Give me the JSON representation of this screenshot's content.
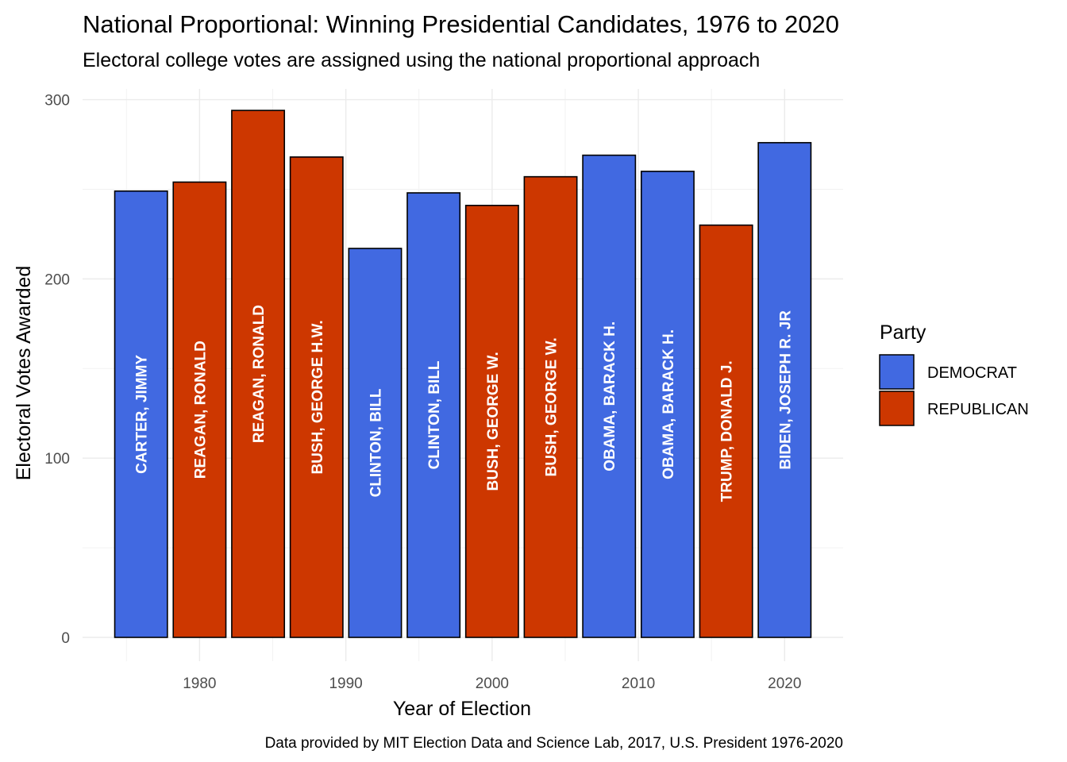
{
  "chart_data": {
    "type": "bar",
    "title": "National Proportional: Winning Presidential Candidates, 1976 to 2020",
    "subtitle": "Electoral college votes are assigned using the national proportional approach",
    "xlabel": "Year of Election",
    "ylabel": "Electoral Votes Awarded",
    "caption": "Data provided by MIT Election Data and Science Lab, 2017, U.S. President 1976-2020",
    "xlim": [
      1972,
      2024
    ],
    "ylim": [
      0,
      300
    ],
    "x_ticks": [
      "1980",
      "1990",
      "2000",
      "2010",
      "2020"
    ],
    "y_ticks": [
      "0",
      "100",
      "200",
      "300"
    ],
    "grid": true,
    "legend": {
      "title": "Party",
      "position": "right",
      "entries": [
        {
          "label": "DEMOCRAT",
          "color": "#4169e1"
        },
        {
          "label": "REPUBLICAN",
          "color": "#cd3700"
        }
      ]
    },
    "bars": [
      {
        "year": 1976,
        "value": 249,
        "candidate": "CARTER, JIMMY",
        "party": "DEMOCRAT"
      },
      {
        "year": 1980,
        "value": 254,
        "candidate": "REAGAN, RONALD",
        "party": "REPUBLICAN"
      },
      {
        "year": 1984,
        "value": 294,
        "candidate": "REAGAN, RONALD",
        "party": "REPUBLICAN"
      },
      {
        "year": 1988,
        "value": 268,
        "candidate": "BUSH, GEORGE H.W.",
        "party": "REPUBLICAN"
      },
      {
        "year": 1992,
        "value": 217,
        "candidate": "CLINTON, BILL",
        "party": "DEMOCRAT"
      },
      {
        "year": 1996,
        "value": 248,
        "candidate": "CLINTON, BILL",
        "party": "DEMOCRAT"
      },
      {
        "year": 2000,
        "value": 241,
        "candidate": "BUSH, GEORGE W.",
        "party": "REPUBLICAN"
      },
      {
        "year": 2004,
        "value": 257,
        "candidate": "BUSH, GEORGE W.",
        "party": "REPUBLICAN"
      },
      {
        "year": 2008,
        "value": 269,
        "candidate": "OBAMA, BARACK H.",
        "party": "DEMOCRAT"
      },
      {
        "year": 2012,
        "value": 260,
        "candidate": "OBAMA, BARACK H.",
        "party": "DEMOCRAT"
      },
      {
        "year": 2016,
        "value": 230,
        "candidate": "TRUMP, DONALD J.",
        "party": "REPUBLICAN"
      },
      {
        "year": 2020,
        "value": 276,
        "candidate": "BIDEN, JOSEPH R. JR",
        "party": "DEMOCRAT"
      }
    ]
  }
}
